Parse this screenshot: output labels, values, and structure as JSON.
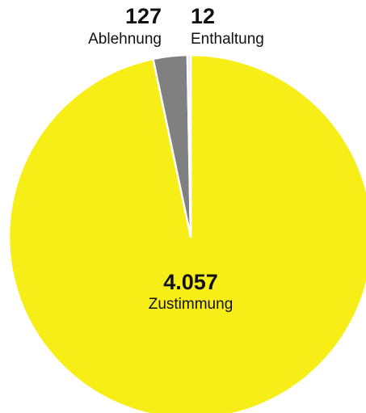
{
  "chart_data": {
    "type": "pie",
    "categories": [
      "Zustimmung",
      "Ablehnung",
      "Enthaltung"
    ],
    "values": [
      4057,
      127,
      12
    ],
    "value_labels": [
      "4.057",
      "127",
      "12"
    ],
    "colors": [
      "#f8ee17",
      "#808080",
      "#e6e6ea"
    ]
  }
}
